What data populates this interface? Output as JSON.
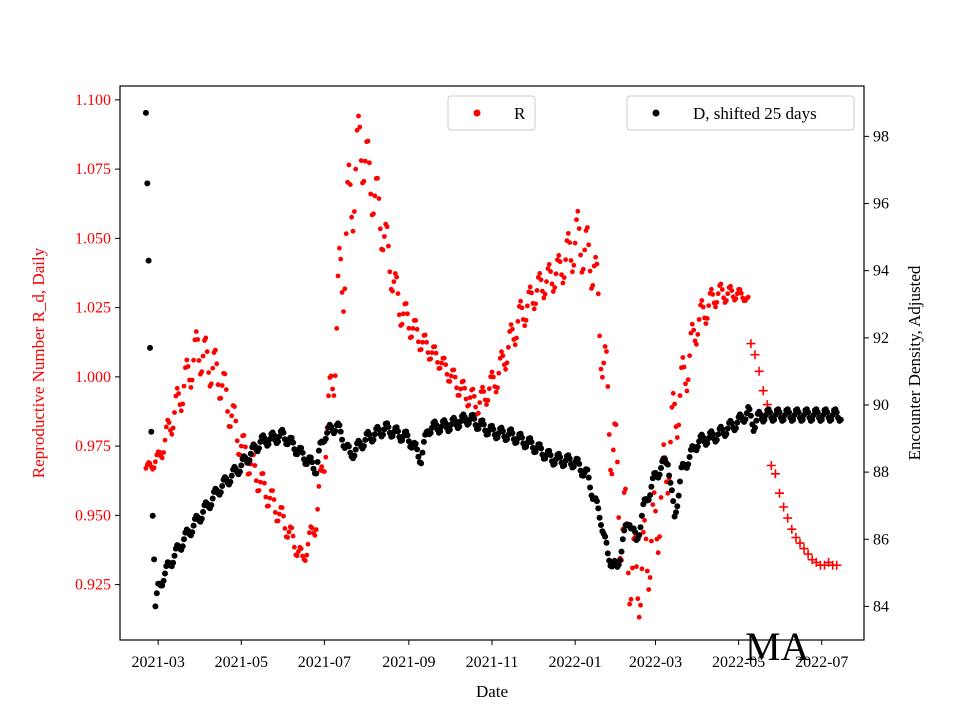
{
  "chart_data": {
    "type": "scatter",
    "xlabel": "Date",
    "ylabel_left": "Reproductive Number R_d, Daily",
    "ylabel_right": "Encounter Density, Adjusted",
    "x_range": [
      "2021-02-01",
      "2022-08-01"
    ],
    "x_ticks": [
      "2021-03",
      "2021-05",
      "2021-07",
      "2021-09",
      "2021-11",
      "2022-01",
      "2022-03",
      "2022-05",
      "2022-07"
    ],
    "ylim_left": [
      0.905,
      1.105
    ],
    "yticks_left": [
      "0.925",
      "0.950",
      "0.975",
      "1.000",
      "1.025",
      "1.050",
      "1.075",
      "1.100"
    ],
    "ylim_right": [
      83,
      99.5
    ],
    "yticks_right": [
      "84",
      "86",
      "88",
      "90",
      "92",
      "94",
      "96",
      "98"
    ],
    "annotation": "MA",
    "colors": {
      "R": "#ff0000",
      "D": "#000000"
    },
    "legend": {
      "R": {
        "label": "R",
        "placement": "top-center"
      },
      "D": {
        "label": "D, shifted 25 days",
        "placement": "top-right"
      }
    },
    "series": [
      {
        "name": "R",
        "axis": "left",
        "marker": "dot",
        "note": "daily values with weekly oscillation; midline and oscillation amplitude at key dates",
        "dates": [
          "2021-02-20",
          "2021-03-01",
          "2021-03-15",
          "2021-03-30",
          "2021-04-15",
          "2021-05-01",
          "2021-05-15",
          "2021-06-01",
          "2021-06-15",
          "2021-06-25",
          "2021-07-05",
          "2021-07-15",
          "2021-07-27",
          "2021-08-10",
          "2021-08-25",
          "2021-09-10",
          "2021-09-25",
          "2021-10-10",
          "2021-10-22",
          "2021-11-05",
          "2021-11-20",
          "2021-12-05",
          "2021-12-20",
          "2022-01-03",
          "2022-01-15",
          "2022-01-25",
          "2022-02-05",
          "2022-02-15",
          "2022-03-01",
          "2022-03-15",
          "2022-04-01",
          "2022-04-15",
          "2022-05-01",
          "2022-05-08"
        ],
        "mid": [
          0.967,
          0.97,
          0.99,
          1.01,
          1.0,
          0.975,
          0.962,
          0.948,
          0.934,
          0.948,
          0.99,
          1.045,
          1.085,
          1.06,
          1.025,
          1.013,
          1.005,
          0.995,
          0.99,
          1.0,
          1.02,
          1.032,
          1.038,
          1.05,
          1.04,
          0.99,
          0.945,
          0.925,
          0.945,
          0.985,
          1.02,
          1.03,
          1.03,
          1.028
        ],
        "amp": [
          0.001,
          0.003,
          0.006,
          0.008,
          0.008,
          0.006,
          0.005,
          0.004,
          0.003,
          0.004,
          0.01,
          0.022,
          0.012,
          0.01,
          0.006,
          0.004,
          0.003,
          0.004,
          0.004,
          0.005,
          0.006,
          0.005,
          0.006,
          0.01,
          0.01,
          0.015,
          0.02,
          0.015,
          0.015,
          0.012,
          0.006,
          0.004,
          0.002,
          0.001
        ]
      },
      {
        "name": "R (projection)",
        "axis": "left",
        "marker": "plus",
        "dates": [
          "2022-05-10",
          "2022-05-13",
          "2022-05-16",
          "2022-05-19",
          "2022-05-22",
          "2022-05-25",
          "2022-05-28",
          "2022-05-31",
          "2022-06-03",
          "2022-06-06",
          "2022-06-09",
          "2022-06-12",
          "2022-06-15",
          "2022-06-18",
          "2022-06-21",
          "2022-06-24",
          "2022-06-27",
          "2022-06-30",
          "2022-07-03",
          "2022-07-06",
          "2022-07-09",
          "2022-07-12"
        ],
        "values": [
          1.012,
          1.008,
          1.002,
          0.995,
          0.99,
          0.968,
          0.965,
          0.958,
          0.953,
          0.949,
          0.945,
          0.942,
          0.94,
          0.938,
          0.936,
          0.934,
          0.933,
          0.932,
          0.932,
          0.933,
          0.932,
          0.932
        ]
      },
      {
        "name": "D, shifted 25 days",
        "axis": "right",
        "marker": "dot",
        "dates": [
          "2021-02-20",
          "2021-02-21",
          "2021-02-22",
          "2021-02-23",
          "2021-02-24",
          "2021-02-25",
          "2021-02-26",
          "2021-02-27",
          "2021-03-01",
          "2021-03-05",
          "2021-03-10",
          "2021-03-20",
          "2021-04-01",
          "2021-04-15",
          "2021-05-01",
          "2021-05-15",
          "2021-06-01",
          "2021-06-15",
          "2021-06-25",
          "2021-06-28",
          "2021-07-01",
          "2021-07-10",
          "2021-07-20",
          "2021-07-27",
          "2021-08-01",
          "2021-08-15",
          "2021-09-01",
          "2021-09-10",
          "2021-09-15",
          "2021-10-01",
          "2021-10-15",
          "2021-11-01",
          "2021-11-15",
          "2021-12-01",
          "2021-12-15",
          "2022-01-01",
          "2022-01-10",
          "2022-01-15",
          "2022-01-20",
          "2022-01-25",
          "2022-02-01",
          "2022-02-05",
          "2022-02-10",
          "2022-02-15",
          "2022-02-20",
          "2022-03-01",
          "2022-03-10",
          "2022-03-15",
          "2022-03-20",
          "2022-04-01",
          "2022-04-15",
          "2022-05-01",
          "2022-05-08",
          "2022-05-12",
          "2022-05-15",
          "2022-05-20",
          "2022-06-01",
          "2022-06-15",
          "2022-07-01",
          "2022-07-15"
        ],
        "values": [
          98.7,
          96.6,
          94.3,
          91.7,
          89.2,
          86.7,
          85.4,
          84.0,
          84.5,
          84.9,
          85.3,
          86.0,
          86.7,
          87.5,
          88.2,
          88.9,
          89.1,
          88.5,
          88.1,
          88.7,
          89.1,
          89.4,
          88.5,
          88.8,
          89.0,
          89.3,
          89.0,
          88.4,
          89.3,
          89.4,
          89.6,
          89.2,
          89.1,
          88.8,
          88.4,
          88.3,
          87.9,
          87.2,
          86.6,
          85.5,
          85.1,
          86.0,
          86.6,
          85.9,
          86.9,
          87.9,
          88.4,
          86.6,
          88.0,
          88.9,
          89.1,
          89.5,
          89.8,
          89.4,
          89.6,
          89.7,
          89.7,
          89.7,
          89.7,
          89.7
        ]
      }
    ]
  }
}
